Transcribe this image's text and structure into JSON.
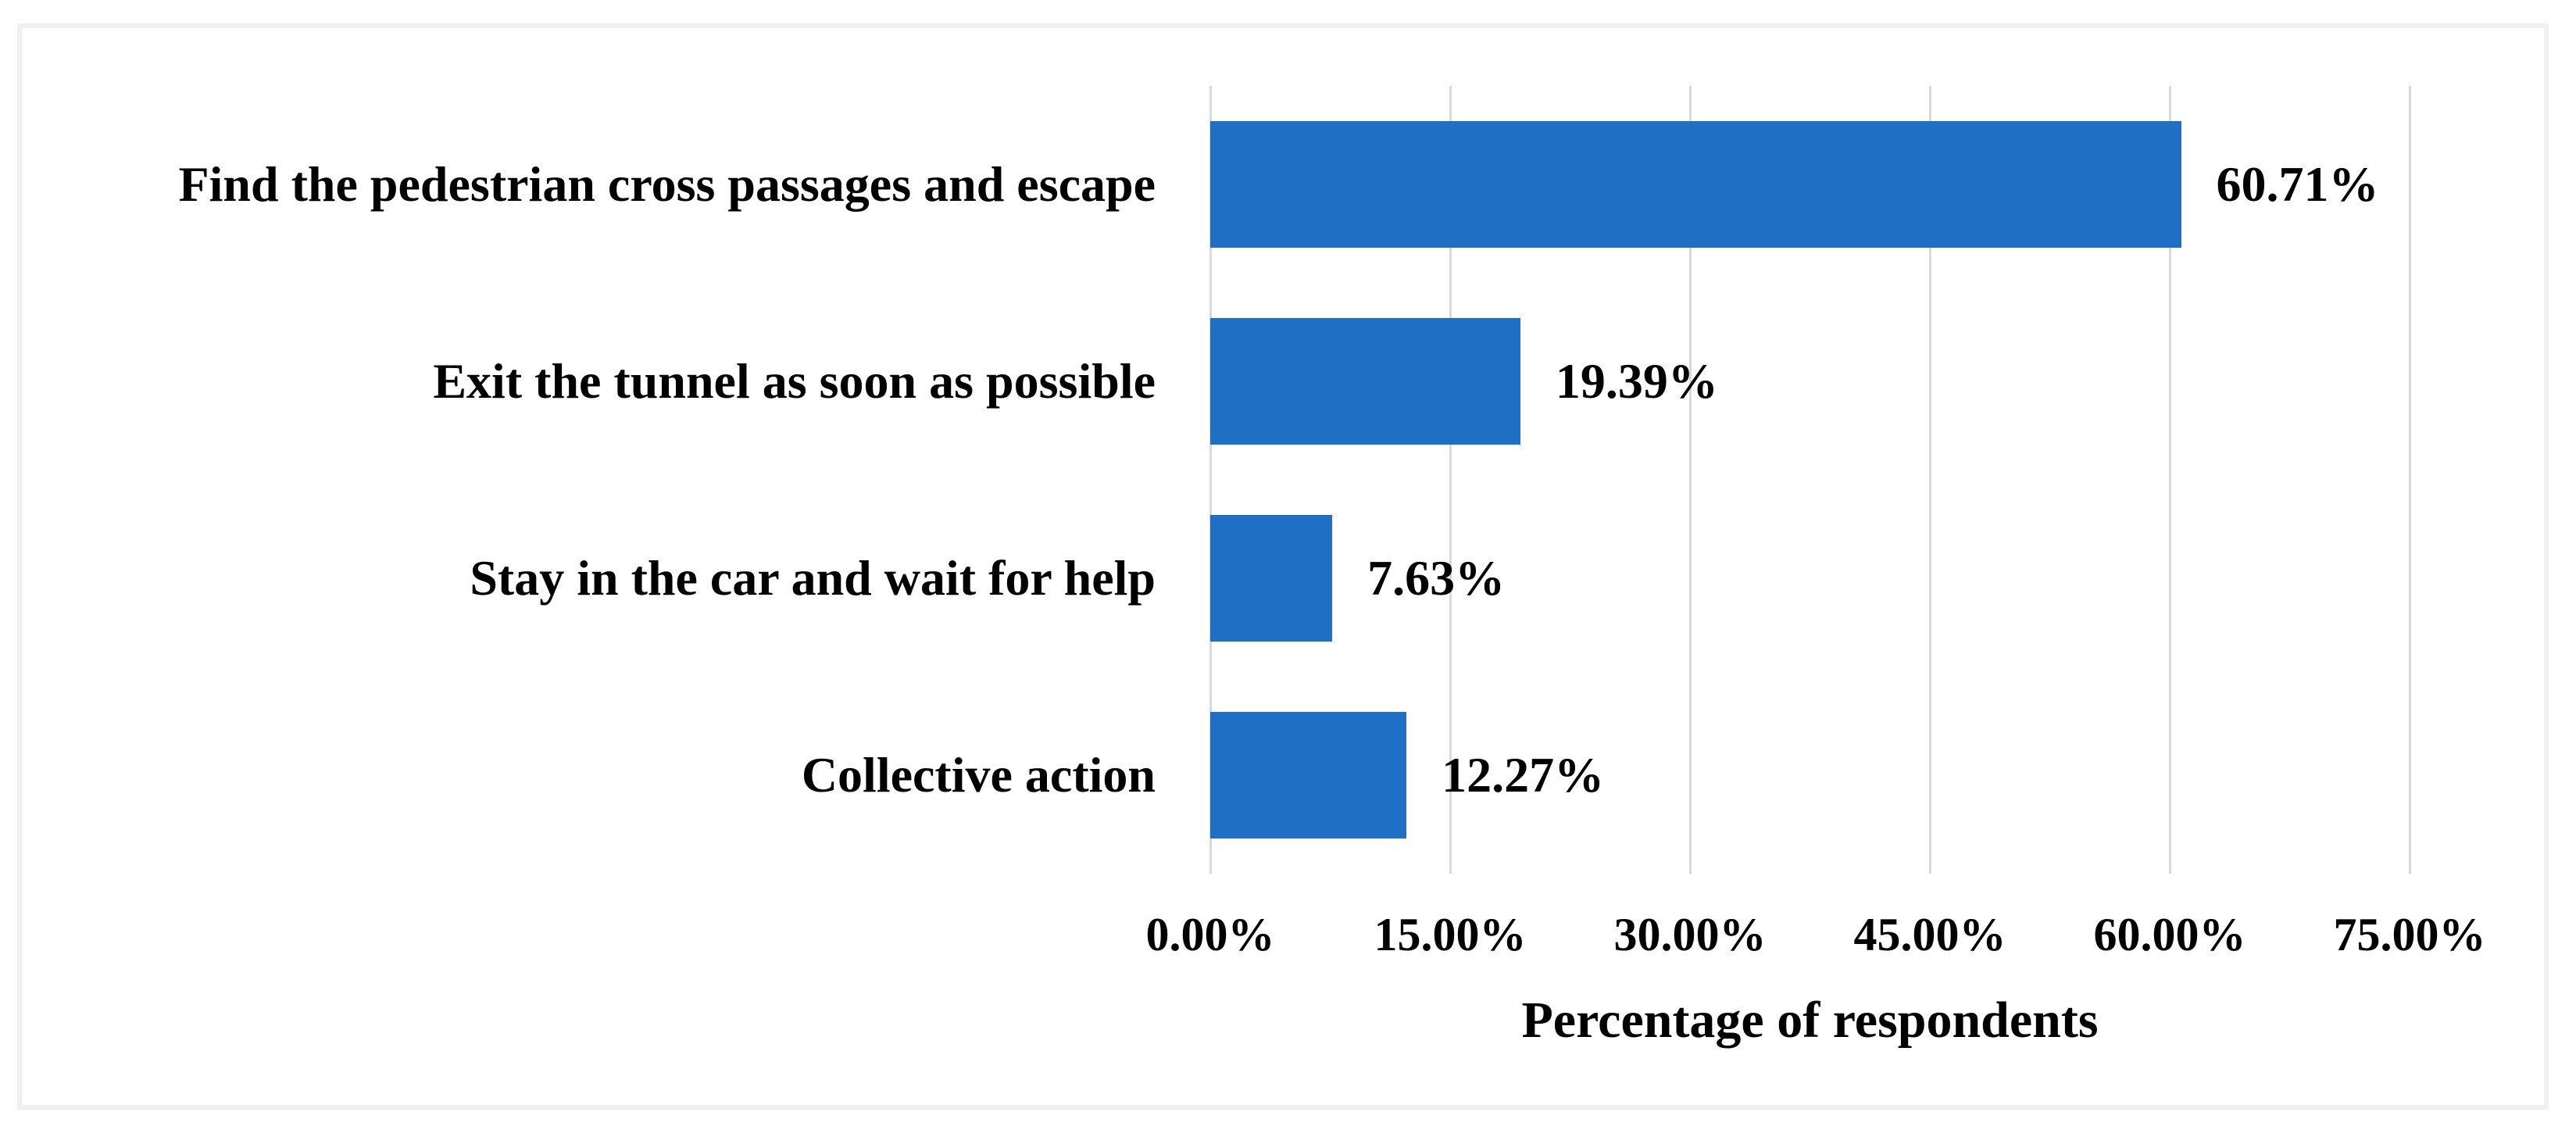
{
  "chart_data": {
    "type": "bar",
    "orientation": "horizontal",
    "title": "",
    "categories": [
      "Find the pedestrian cross passages and escape",
      "Exit the tunnel as soon as possible",
      "Stay in the car and wait for help",
      "Collective action"
    ],
    "values": [
      60.71,
      19.39,
      7.63,
      12.27
    ],
    "value_labels": [
      "60.71%",
      "19.39%",
      "7.63%",
      "12.27%"
    ],
    "xlabel": "Percentage of respondents",
    "ylabel": "",
    "xlim": [
      0,
      75
    ],
    "x_ticks": [
      0,
      15,
      30,
      45,
      60,
      75
    ],
    "x_tick_labels": [
      "0.00%",
      "15.00%",
      "30.00%",
      "45.00%",
      "60.00%",
      "75.00%"
    ],
    "grid": "vertical-gridlines-on",
    "legend": "none",
    "bar_color": "#1f6fc5",
    "gridline_color": "#d9d9d9",
    "text_color": "#000000",
    "border_color": "#f0f0f0"
  }
}
